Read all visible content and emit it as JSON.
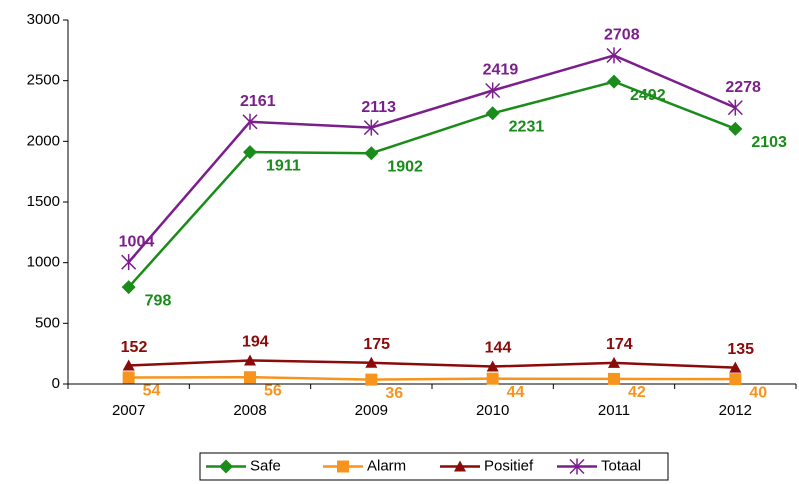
{
  "chart_data": {
    "type": "line",
    "categories": [
      "2007",
      "2008",
      "2009",
      "2010",
      "2011",
      "2012"
    ],
    "series": [
      {
        "name": "Safe",
        "color": "#1a8c1a",
        "marker": "diamond",
        "values": [
          798,
          1911,
          1902,
          2231,
          2492,
          2103
        ]
      },
      {
        "name": "Alarm",
        "color": "#f7941d",
        "marker": "square",
        "values": [
          54,
          56,
          36,
          44,
          42,
          40
        ]
      },
      {
        "name": "Positief",
        "color": "#8b0a0a",
        "marker": "triangle",
        "values": [
          152,
          194,
          175,
          144,
          174,
          135
        ]
      },
      {
        "name": "Totaal",
        "color": "#7b1f8c",
        "marker": "star",
        "values": [
          1004,
          2161,
          2113,
          2419,
          2708,
          2278
        ]
      }
    ],
    "ylim": [
      0,
      3000
    ],
    "yticks": [
      0,
      500,
      1000,
      1500,
      2000,
      2500,
      3000
    ],
    "legend": "bottom"
  }
}
